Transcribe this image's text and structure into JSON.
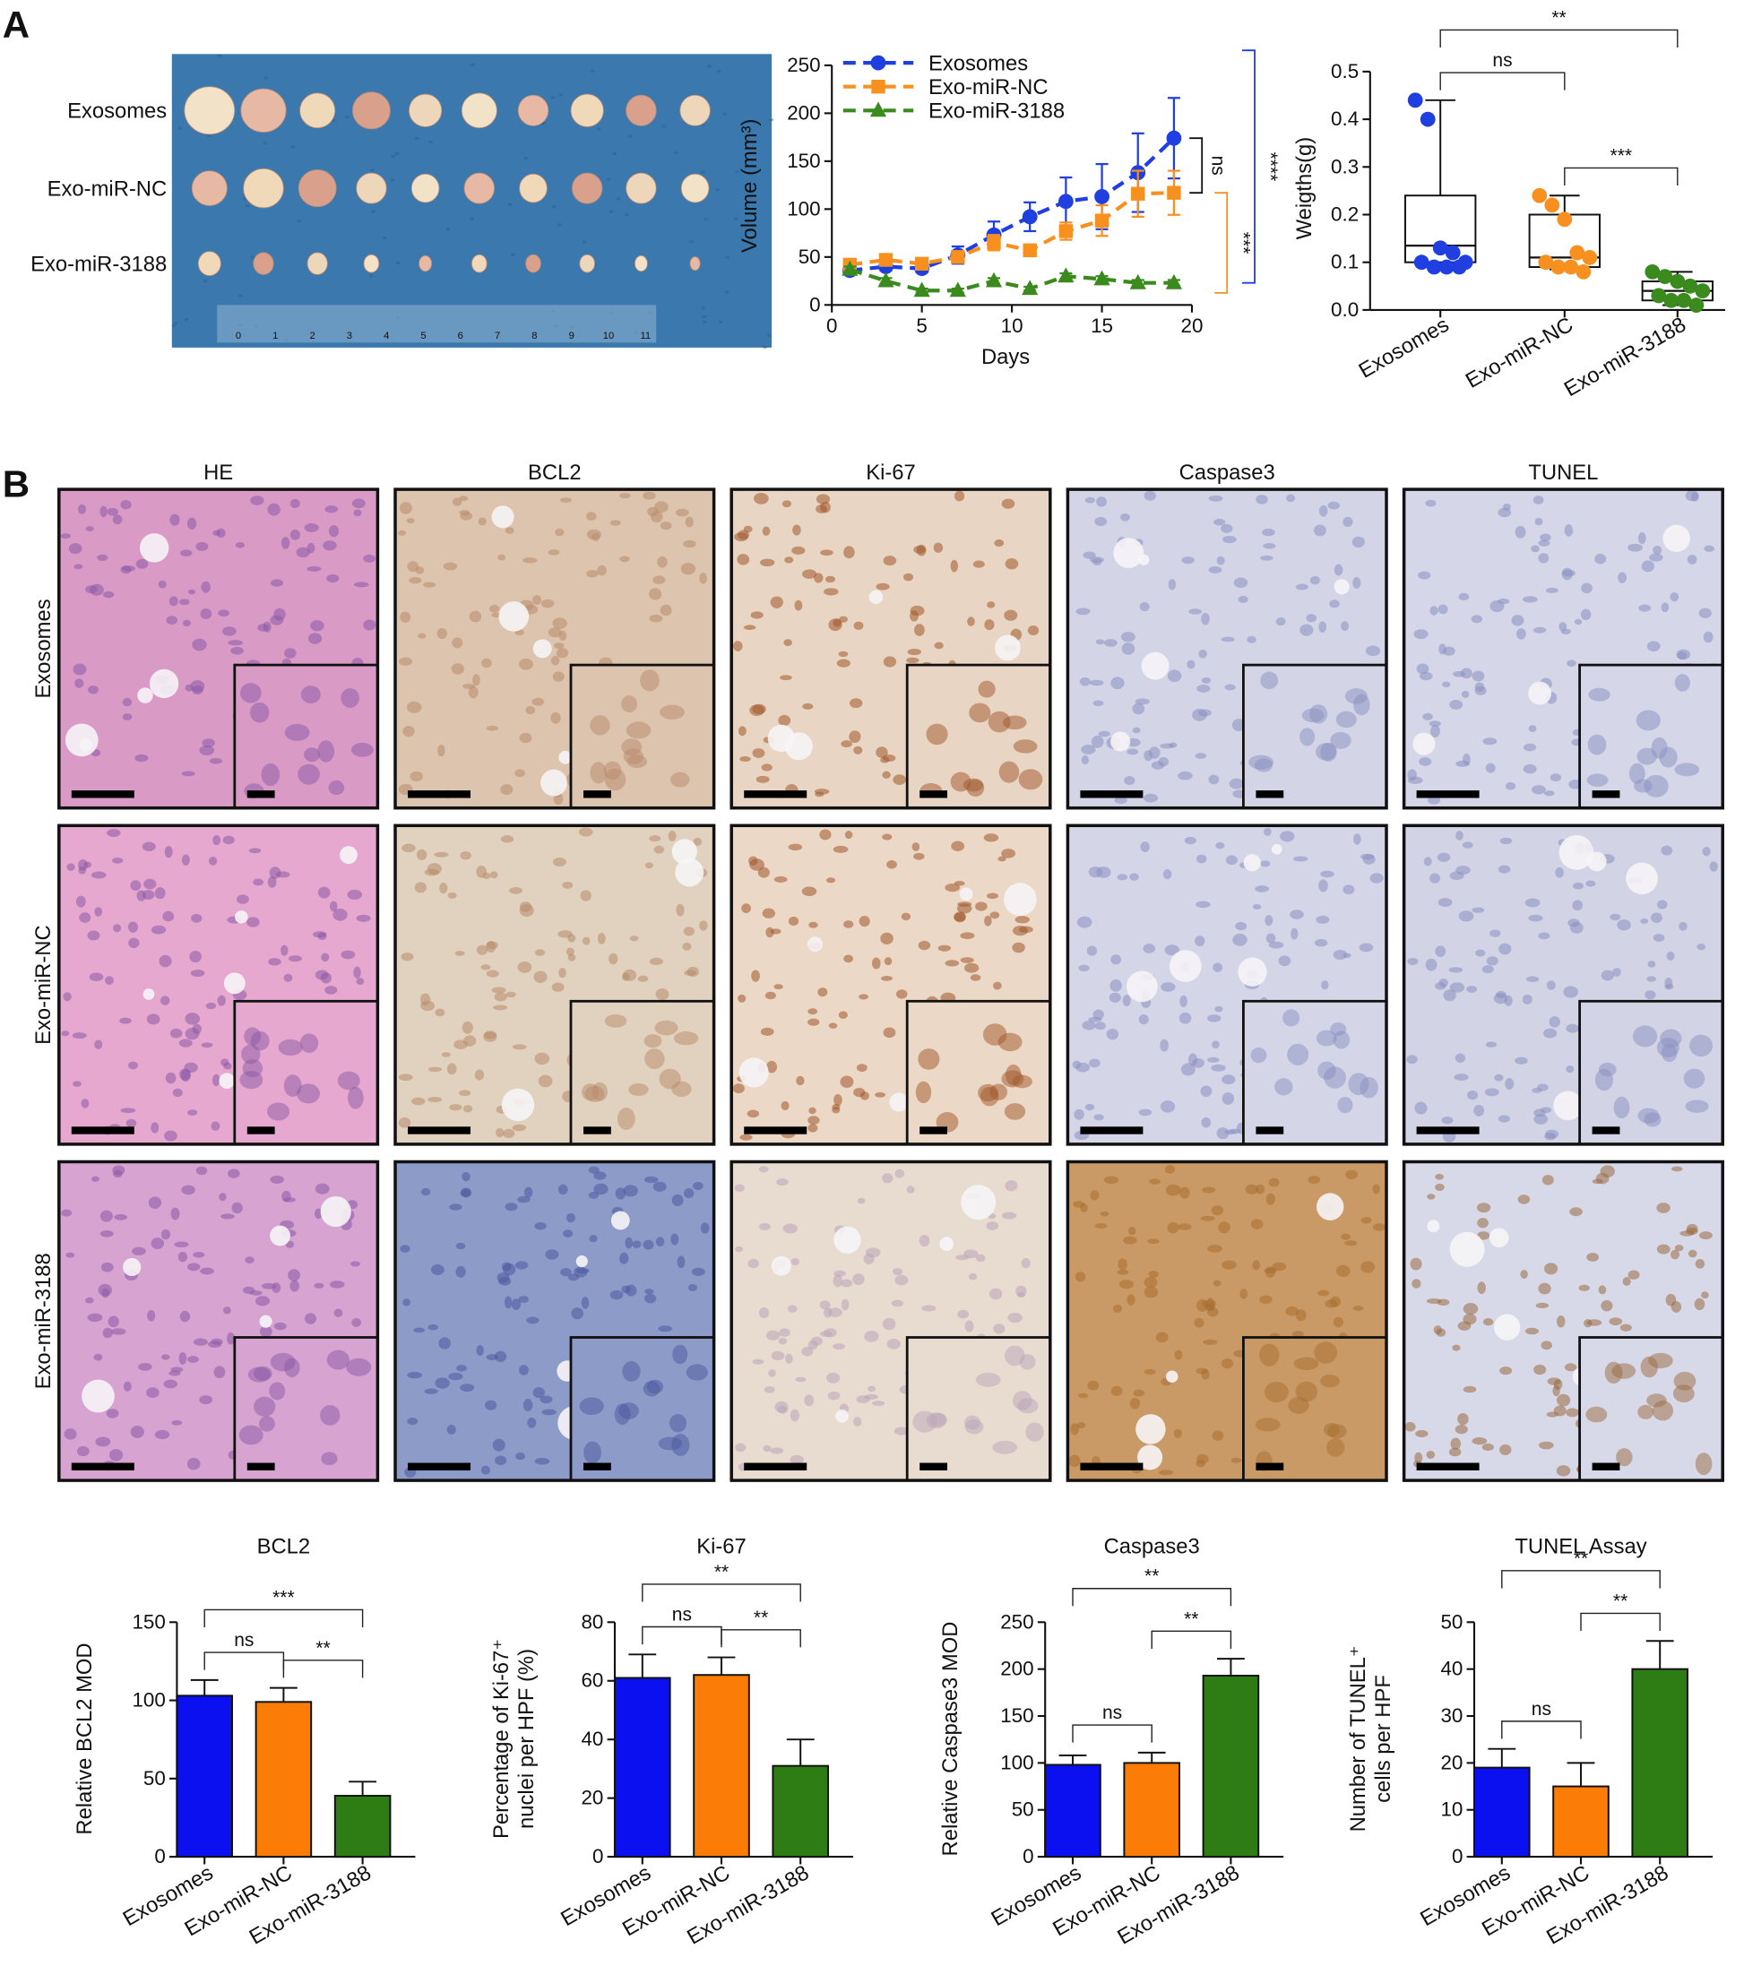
{
  "panel_labels": [
    "A",
    "B"
  ],
  "tumor_photo": {
    "row_labels": [
      "Exosomes",
      "Exo-miR-NC",
      "Exo-miR-3188"
    ],
    "ruler_ticks": [
      0,
      1,
      2,
      3,
      4,
      5,
      6,
      7,
      8,
      9,
      10,
      11
    ]
  },
  "ihc": {
    "columns": [
      "HE",
      "BCL2",
      "Ki-67",
      "Caspase3",
      "TUNEL"
    ],
    "rows": [
      "Exosomes",
      "Exo-miR-NC",
      "Exo-miR-3188"
    ]
  },
  "chart_data": [
    {
      "type": "line",
      "xlabel": "Days",
      "ylabel": "Volume (mm³)",
      "x": [
        1,
        3,
        5,
        7,
        9,
        11,
        13,
        15,
        17,
        19
      ],
      "xlim": [
        0,
        20
      ],
      "xticks": [
        0,
        5,
        10,
        15,
        20
      ],
      "ylim": [
        0,
        250
      ],
      "yticks": [
        0,
        50,
        100,
        150,
        200,
        250
      ],
      "series": [
        {
          "name": "Exosomes",
          "color": "#1f3fe0",
          "marker": "circle",
          "values": [
            36,
            40,
            38,
            52,
            73,
            92,
            108,
            113,
            138,
            174
          ],
          "errors": [
            4,
            4,
            4,
            9,
            14,
            15,
            25,
            34,
            41,
            42
          ]
        },
        {
          "name": "Exo-miR-NC",
          "color": "#f7901e",
          "marker": "square",
          "values": [
            42,
            47,
            43,
            50,
            65,
            57,
            77,
            88,
            116,
            117
          ],
          "errors": [
            4,
            4,
            4,
            6,
            8,
            6,
            9,
            16,
            24,
            23
          ]
        },
        {
          "name": "Exo-miR-3188",
          "color": "#3a8a1e",
          "marker": "triangle",
          "values": [
            37,
            25,
            15,
            15,
            25,
            17,
            30,
            27,
            23,
            23
          ],
          "errors": [
            3,
            3,
            2,
            2,
            3,
            2,
            3,
            3,
            3,
            3
          ]
        }
      ],
      "annotations": [
        {
          "label": "ns",
          "pair": [
            "Exosomes",
            "Exo-miR-NC"
          ],
          "color": "#111111"
        },
        {
          "label": "***",
          "pair": [
            "Exo-miR-NC",
            "Exo-miR-3188"
          ],
          "color": "#f7901e"
        },
        {
          "label": "****",
          "pair": [
            "Exosomes",
            "Exo-miR-3188"
          ],
          "color": "#1f3fe0"
        }
      ]
    },
    {
      "type": "box",
      "ylabel": "Weigths(g)",
      "categories": [
        "Exosomes",
        "Exo-miR-NC",
        "Exo-miR-3188"
      ],
      "colors": [
        "#1f3fe0",
        "#f7901e",
        "#3a8a1e"
      ],
      "boxes": [
        {
          "min": 0.09,
          "q1": 0.1,
          "median": 0.135,
          "q3": 0.24,
          "max": 0.44
        },
        {
          "min": 0.085,
          "q1": 0.09,
          "median": 0.11,
          "q3": 0.2,
          "max": 0.24
        },
        {
          "min": 0.01,
          "q1": 0.02,
          "median": 0.04,
          "q3": 0.06,
          "max": 0.08
        }
      ],
      "points": [
        [
          0.44,
          0.4,
          0.13,
          0.12,
          0.1,
          0.1,
          0.09,
          0.09,
          0.09
        ],
        [
          0.24,
          0.22,
          0.19,
          0.12,
          0.11,
          0.1,
          0.09,
          0.09,
          0.08
        ],
        [
          0.08,
          0.07,
          0.06,
          0.05,
          0.04,
          0.03,
          0.02,
          0.02,
          0.01
        ]
      ],
      "ylim": [
        0,
        0.5
      ],
      "yticks": [
        {
          "value": 0,
          "label": "0.0"
        },
        {
          "value": 0.1,
          "label": "0.1"
        },
        {
          "value": 0.2,
          "label": "0.2"
        },
        {
          "value": 0.3,
          "label": "0.3"
        },
        {
          "value": 0.4,
          "label": "0.4"
        },
        {
          "value": 0.5,
          "label": "0.5"
        }
      ],
      "annotations": [
        {
          "label": "ns",
          "pair": [
            "Exosomes",
            "Exo-miR-NC"
          ]
        },
        {
          "label": "***",
          "pair": [
            "Exo-miR-NC",
            "Exo-miR-3188"
          ]
        },
        {
          "label": "**",
          "pair": [
            "Exosomes",
            "Exo-miR-3188"
          ]
        }
      ]
    },
    {
      "type": "bar",
      "title": "BCL2",
      "ylabel": [
        "Relative BCL2 MOD"
      ],
      "categories": [
        "Exosomes",
        "Exo-miR-NC",
        "Exo-miR-3188"
      ],
      "colors": [
        "#0a10f0",
        "#fb7c06",
        "#2e7d14"
      ],
      "values": [
        103,
        99,
        39
      ],
      "errors": [
        10,
        9,
        9
      ],
      "ylim": [
        0,
        150
      ],
      "yticks": [
        0,
        50,
        100,
        150
      ],
      "annotations": [
        {
          "label": "ns",
          "pair": [
            "Exosomes",
            "Exo-miR-NC"
          ]
        },
        {
          "label": "**",
          "pair": [
            "Exo-miR-NC",
            "Exo-miR-3188"
          ]
        },
        {
          "label": "***",
          "pair": [
            "Exosomes",
            "Exo-miR-3188"
          ]
        }
      ]
    },
    {
      "type": "bar",
      "title": "Ki-67",
      "ylabel": [
        "Percentage of Ki-67⁺",
        "nuclei per HPF (%)"
      ],
      "categories": [
        "Exosomes",
        "Exo-miR-NC",
        "Exo-miR-3188"
      ],
      "colors": [
        "#0a10f0",
        "#fb7c06",
        "#2e7d14"
      ],
      "values": [
        61,
        62,
        31
      ],
      "errors": [
        8,
        6,
        9
      ],
      "ylim": [
        0,
        80
      ],
      "yticks": [
        0,
        20,
        40,
        60,
        80
      ],
      "annotations": [
        {
          "label": "ns",
          "pair": [
            "Exosomes",
            "Exo-miR-NC"
          ]
        },
        {
          "label": "**",
          "pair": [
            "Exo-miR-NC",
            "Exo-miR-3188"
          ]
        },
        {
          "label": "**",
          "pair": [
            "Exosomes",
            "Exo-miR-3188"
          ]
        }
      ]
    },
    {
      "type": "bar",
      "title": "Caspase3",
      "ylabel": [
        "Relative Caspase3 MOD"
      ],
      "categories": [
        "Exosomes",
        "Exo-miR-NC",
        "Exo-miR-3188"
      ],
      "colors": [
        "#0a10f0",
        "#fb7c06",
        "#2e7d14"
      ],
      "values": [
        98,
        100,
        193
      ],
      "errors": [
        10,
        11,
        18
      ],
      "ylim": [
        0,
        250
      ],
      "yticks": [
        0,
        50,
        100,
        150,
        200,
        250
      ],
      "annotations": [
        {
          "label": "ns",
          "pair": [
            "Exosomes",
            "Exo-miR-NC"
          ]
        },
        {
          "label": "**",
          "pair": [
            "Exo-miR-NC",
            "Exo-miR-3188"
          ]
        },
        {
          "label": "**",
          "pair": [
            "Exosomes",
            "Exo-miR-3188"
          ]
        }
      ]
    },
    {
      "type": "bar",
      "title": "TUNEL Assay",
      "ylabel": [
        "Number of TUNEL⁺",
        "cells per HPF"
      ],
      "categories": [
        "Exosomes",
        "Exo-miR-NC",
        "Exo-miR-3188"
      ],
      "colors": [
        "#0a10f0",
        "#fb7c06",
        "#2e7d14"
      ],
      "values": [
        19,
        15,
        40
      ],
      "errors": [
        4,
        5,
        6
      ],
      "ylim": [
        0,
        50
      ],
      "yticks": [
        0,
        10,
        20,
        30,
        40,
        50
      ],
      "annotations": [
        {
          "label": "ns",
          "pair": [
            "Exosomes",
            "Exo-miR-NC"
          ]
        },
        {
          "label": "**",
          "pair": [
            "Exo-miR-NC",
            "Exo-miR-3188"
          ]
        },
        {
          "label": "**",
          "pair": [
            "Exosomes",
            "Exo-miR-3188"
          ]
        }
      ]
    }
  ]
}
